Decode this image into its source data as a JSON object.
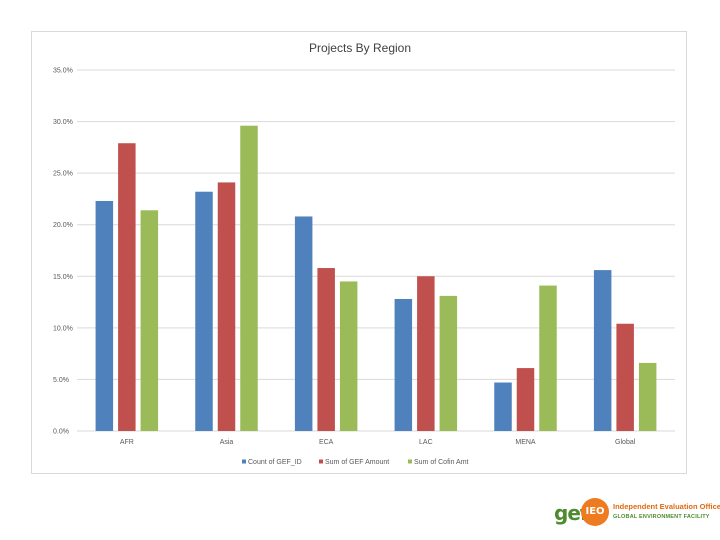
{
  "chart_data": {
    "type": "bar",
    "title": "Projects By Region",
    "categories": [
      "AFR",
      "Asia",
      "ECA",
      "LAC",
      "MENA",
      "Global"
    ],
    "series": [
      {
        "name": "Count of GEF_ID",
        "color": "#4f81bd",
        "values": [
          22.3,
          23.2,
          20.8,
          12.8,
          4.7,
          15.6
        ]
      },
      {
        "name": "Sum of GEF Amount",
        "color": "#c0504d",
        "values": [
          27.9,
          24.1,
          15.8,
          15.0,
          6.1,
          10.4
        ]
      },
      {
        "name": "Sum of Cofin Amt",
        "color": "#9bbb59",
        "values": [
          21.4,
          29.6,
          14.5,
          13.1,
          14.1,
          6.6
        ]
      }
    ],
    "ylim": [
      0,
      35
    ],
    "yticks": [
      0,
      5,
      10,
      15,
      20,
      25,
      30,
      35
    ],
    "ytick_labels": [
      "0.0%",
      "5.0%",
      "10.0%",
      "15.0%",
      "20.0%",
      "25.0%",
      "30.0%",
      "35.0%"
    ],
    "grid": true,
    "legend_position": "bottom"
  },
  "logo": {
    "mark": "gef",
    "badge": "IEO",
    "line1": "Independent Evaluation Office",
    "line2": "GLOBAL ENVIRONMENT FACILITY",
    "color_green": "#4e8a2e",
    "color_orange": "#ee7b1f"
  }
}
